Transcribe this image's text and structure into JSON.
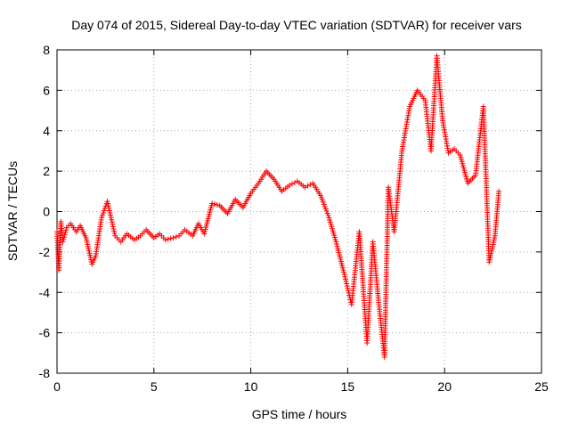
{
  "chart_data": {
    "type": "scatter",
    "title": "Day 074 of 2015, Sidereal Day-to-day VTEC variation (SDTVAR) for receiver vars",
    "xlabel": "GPS time / hours",
    "ylabel": "SDTVAR / TECUs",
    "xlim": [
      0,
      25
    ],
    "ylim": [
      -8,
      8
    ],
    "xticks": [
      0,
      5,
      10,
      15,
      20,
      25
    ],
    "yticks": [
      -8,
      -6,
      -4,
      -2,
      0,
      2,
      4,
      6,
      8
    ],
    "grid": true,
    "marker": "+",
    "color": "#ff0000",
    "series": [
      {
        "name": "SDTVAR",
        "x": [
          0.0,
          0.1,
          0.2,
          0.3,
          0.5,
          0.7,
          1.0,
          1.2,
          1.5,
          1.8,
          2.0,
          2.3,
          2.6,
          3.0,
          3.3,
          3.6,
          4.0,
          4.3,
          4.6,
          5.0,
          5.3,
          5.6,
          6.0,
          6.3,
          6.6,
          7.0,
          7.3,
          7.6,
          8.0,
          8.4,
          8.8,
          9.2,
          9.6,
          10.0,
          10.4,
          10.8,
          11.2,
          11.6,
          12.0,
          12.4,
          12.8,
          13.2,
          13.6,
          14.0,
          14.4,
          14.8,
          15.2,
          15.6,
          16.0,
          16.3,
          16.6,
          16.9,
          17.1,
          17.4,
          17.8,
          18.2,
          18.6,
          19.0,
          19.3,
          19.6,
          19.9,
          20.2,
          20.5,
          20.8,
          21.2,
          21.6,
          22.0,
          22.3,
          22.6,
          22.8
        ],
        "y": [
          -1.0,
          -2.9,
          -0.5,
          -1.5,
          -0.8,
          -0.6,
          -1.0,
          -0.7,
          -1.3,
          -2.6,
          -2.2,
          -0.3,
          0.5,
          -1.2,
          -1.5,
          -1.1,
          -1.4,
          -1.2,
          -0.9,
          -1.3,
          -1.1,
          -1.4,
          -1.3,
          -1.2,
          -0.9,
          -1.2,
          -0.6,
          -1.1,
          0.4,
          0.3,
          -0.1,
          0.6,
          0.2,
          0.9,
          1.4,
          2.0,
          1.6,
          1.0,
          1.3,
          1.5,
          1.2,
          1.4,
          0.8,
          -0.2,
          -1.5,
          -3.0,
          -4.6,
          -1.0,
          -6.5,
          -1.5,
          -4.5,
          -7.2,
          1.2,
          -1.0,
          3.0,
          5.2,
          6.0,
          5.5,
          3.0,
          7.7,
          4.5,
          2.9,
          3.1,
          2.8,
          1.4,
          1.8,
          5.2,
          -2.5,
          -1.2,
          1.0
        ]
      }
    ]
  }
}
